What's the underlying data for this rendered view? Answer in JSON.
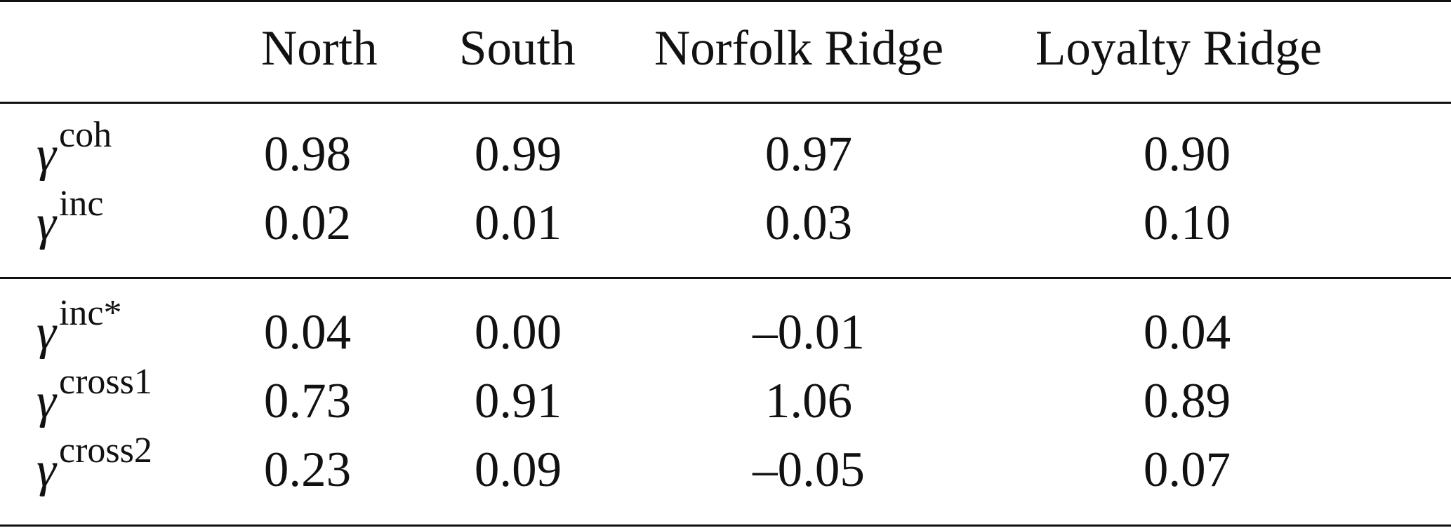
{
  "table": {
    "columns": [
      "North",
      "South",
      "Norfolk Ridge",
      "Loyalty Ridge"
    ],
    "symbol": "γ",
    "group1": [
      {
        "label_sup": "coh",
        "values": [
          "0.98",
          "0.99",
          "0.97",
          "0.90"
        ]
      },
      {
        "label_sup": "inc",
        "values": [
          "0.02",
          "0.01",
          "0.03",
          "0.10"
        ]
      }
    ],
    "group2": [
      {
        "label_sup": "inc*",
        "values": [
          "0.04",
          "0.00",
          "–0.01",
          "0.04"
        ]
      },
      {
        "label_sup": "cross1",
        "values": [
          "0.73",
          "0.91",
          "1.06",
          "0.89"
        ]
      },
      {
        "label_sup": "cross2",
        "values": [
          "0.23",
          "0.09",
          "–0.05",
          "0.07"
        ]
      }
    ]
  }
}
